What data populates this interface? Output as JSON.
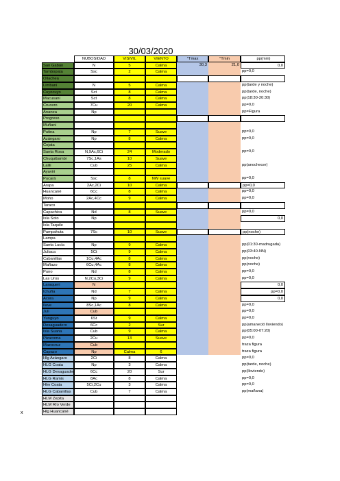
{
  "title": "30/03/2020",
  "side_mark": "x",
  "headers": [
    "",
    "NUBOSIDAD",
    "VISIVIL",
    "VIENTO",
    "°Tmax",
    "°Tmin",
    "pp(mm)"
  ],
  "rows": [
    {
      "st": "San Gabán",
      "n": "N",
      "v": "5",
      "w": "Calma",
      "tx": "30,3",
      "tn": "21,0",
      "pp": "0,0",
      "c": "sb-dark",
      "ppr": true
    },
    {
      "st": "Tambopata",
      "n": "Ssc",
      "v": "2",
      "w": "Calma",
      "tx": "",
      "tn": "",
      "pp": "pp=0,0",
      "c": "sb-dark"
    },
    {
      "st": "Ollachea",
      "n": "",
      "v": "",
      "w": "",
      "tx": "",
      "tn": "",
      "pp": "",
      "c": "sb-dark",
      "box": true
    },
    {
      "st": "Limbani",
      "n": "N",
      "v": "5",
      "w": "Calma",
      "tx": "",
      "tn": "",
      "pp": "pp(tarde y noche)",
      "c": "sb-dark"
    },
    {
      "st": "Cuyocuyo",
      "n": "Sct",
      "v": "8",
      "w": "Calma",
      "tx": "",
      "tn": "",
      "pp": "pp(tarde, noche)",
      "c": "sb-dark"
    },
    {
      "st": "Macusani",
      "n": "Sct",
      "v": "8",
      "w": "Calma",
      "tx": "",
      "tn": "",
      "pp": "pp(18:30-20:30)",
      "c": "sb-light"
    },
    {
      "st": "Crucero",
      "n": "7Cu",
      "v": "20",
      "w": "Calma",
      "tx": "",
      "tn": "",
      "pp": "pp=0,0",
      "c": "sb-light"
    },
    {
      "st": "Ananea",
      "n": "Np",
      "v": "",
      "w": "",
      "tx": "",
      "tn": "",
      "pp": "pp=Figura",
      "c": "sb-light"
    },
    {
      "st": "Progreso",
      "n": "",
      "v": "",
      "w": "",
      "tx": "",
      "tn": "",
      "pp": "",
      "c": "sb-light",
      "box": true
    },
    {
      "st": "Muñani",
      "n": "",
      "v": "",
      "w": "",
      "tx": "",
      "tn": "",
      "pp": "",
      "c": "sb-light"
    },
    {
      "st": "Putina",
      "n": "Np",
      "v": "7",
      "w": "Suave",
      "tx": "",
      "tn": "",
      "pp": "pp=0,0",
      "c": "sb-light"
    },
    {
      "st": "Azángaro",
      "n": "Np",
      "v": "8",
      "w": "Calma",
      "tx": "",
      "tn": "",
      "pp": "pp=0,0",
      "c": "sb-light"
    },
    {
      "st": "Cojata",
      "n": "",
      "v": "",
      "w": "",
      "tx": "",
      "tn": "",
      "pp": "",
      "c": "sb-light"
    },
    {
      "st": "Santa Rosa",
      "n": "N,9Ac,6Ci",
      "v": "24",
      "w": "Moderado",
      "tx": "",
      "tn": "",
      "pp": "pp=0,0",
      "c": "sb-light"
    },
    {
      "st": "Chuquibambi",
      "n": "7Sc,1As",
      "v": "10",
      "w": "Suave",
      "tx": "",
      "tn": "",
      "pp": "",
      "c": "sb-light"
    },
    {
      "st": "Lalili",
      "n": "Cub",
      "v": "25",
      "w": "Calma",
      "tx": "",
      "tn": "",
      "pp": "pp(anochecer)",
      "c": "sb-light"
    },
    {
      "st": "Ayaviri",
      "n": "",
      "v": "",
      "w": "",
      "tx": "",
      "tn": "",
      "pp": "",
      "c": "sb-light"
    },
    {
      "st": "Pucará",
      "n": "Ssc",
      "v": "8",
      "w": "NW suave",
      "tx": "",
      "tn": "",
      "pp": "pp=0,0",
      "c": "sb-light"
    },
    {
      "st": "Arapa",
      "n": "2Ac,2Ci",
      "v": "10",
      "w": "Calma",
      "tx": "",
      "tn": "",
      "pp": "pp=0,0",
      "c": "",
      "box": true
    },
    {
      "st": "Huancané",
      "n": "6Cc",
      "v": "8",
      "w": "Calma",
      "tx": "",
      "tn": "",
      "pp": "pp=0,0",
      "c": ""
    },
    {
      "st": "Moho",
      "n": "2Ac,4Cc",
      "v": "9",
      "w": "Calma",
      "tx": "",
      "tn": "",
      "pp": "pp=0,0",
      "c": ""
    },
    {
      "st": "Taraco",
      "n": "",
      "v": "",
      "w": "",
      "tx": "",
      "tn": "",
      "pp": "",
      "c": "",
      "box": true
    },
    {
      "st": "Capachica",
      "n": "Nd",
      "v": "8",
      "w": "Suave",
      "tx": "",
      "tn": "",
      "pp": "pp=0,0",
      "c": ""
    },
    {
      "st": "Isla Soto",
      "n": "Np",
      "v": "",
      "w": "",
      "tx": "",
      "tn": "",
      "pp": "0,0",
      "c": "",
      "ppr": true
    },
    {
      "st": "Isla Taquile",
      "n": "",
      "v": "",
      "w": "",
      "tx": "",
      "tn": "",
      "pp": "",
      "c": ""
    },
    {
      "st": "Pampahuta",
      "n": "7Sc",
      "v": "10",
      "w": "Suave",
      "tx": "",
      "tn": "",
      "pp": "pp(noche)",
      "c": "",
      "box": true
    },
    {
      "st": "Lampa",
      "n": "",
      "v": "",
      "w": "",
      "tx": "",
      "tn": "",
      "pp": "",
      "c": ""
    },
    {
      "st": "Santa Lucía",
      "n": "Np",
      "v": "9",
      "w": "Calma",
      "tx": "",
      "tn": "",
      "pp": "pp(01:30-madrugada)",
      "c": ""
    },
    {
      "st": "Juliaca",
      "n": "5Ct",
      "v": "9",
      "w": "Calma",
      "tx": "",
      "tn": "",
      "pp": "pp(03:40-NN)",
      "c": ""
    },
    {
      "st": "Cabanillas",
      "n": "1Cu,4Ac",
      "v": "8",
      "w": "Calma",
      "tx": "",
      "tn": "",
      "pp": "pp(noche)",
      "c": ""
    },
    {
      "st": "Mañazo",
      "n": "6Cu,4Ac",
      "v": "8",
      "w": "Calma",
      "tx": "",
      "tn": "",
      "pp": "pp(noche)",
      "c": ""
    },
    {
      "st": "Puno",
      "n": "Nd",
      "v": "8",
      "w": "Calma",
      "tx": "",
      "tn": "",
      "pp": "pp=0,0",
      "c": ""
    },
    {
      "st": "Las Uros",
      "n": "N,2Cu,3Ci",
      "v": "9",
      "w": "Calma",
      "tx": "",
      "tn": "",
      "pp": "pp=0,0",
      "c": ""
    },
    {
      "st": "Laraqueri",
      "n": "N",
      "v": "",
      "w": "",
      "tx": "",
      "tn": "",
      "pp": "0,0",
      "c": "sb-blue",
      "ncol": "pch",
      "ppr": true
    },
    {
      "st": "Ichuña",
      "n": "Nd",
      "v": "7",
      "w": "Calma",
      "tx": "",
      "tn": "",
      "pp": "pp=0,0",
      "c": "sb-blue",
      "ppr": true
    },
    {
      "st": "Acora",
      "n": "Np",
      "v": "9",
      "w": "Calma",
      "tx": "",
      "tn": "",
      "pp": "0,0",
      "c": "sb-blue",
      "ppr": true
    },
    {
      "st": "Ilave",
      "n": "8Sc,1Ac",
      "v": "8",
      "w": "Calma",
      "tx": "",
      "tn": "",
      "pp": "pp=0,0",
      "c": "sb-blue"
    },
    {
      "st": "Juli",
      "n": "Cub",
      "v": "",
      "w": "",
      "tx": "",
      "tn": "",
      "pp": "pp=0,0",
      "c": "sb-blue",
      "ncol": "pch"
    },
    {
      "st": "Yunguyo",
      "n": "6St",
      "v": "9",
      "w": "Calma",
      "tx": "",
      "tn": "",
      "pp": "pp=0,0",
      "c": "sb-blue"
    },
    {
      "st": "Desaguadero",
      "n": "6Cc",
      "v": "2",
      "w": "Sur",
      "tx": "",
      "tn": "",
      "pp": "pp(amaneció lloviendo)",
      "c": "sb-blue"
    },
    {
      "st": "Isla Suana",
      "n": "Cub",
      "v": "9",
      "w": "Calma",
      "tx": "",
      "tn": "",
      "pp": "pp(05:00-07:20)",
      "c": "sb-blue"
    },
    {
      "st": "Pizacoma",
      "n": "2Cu",
      "v": "13",
      "w": "Suave",
      "tx": "",
      "tn": "",
      "pp": "pp=0,0",
      "c": "sb-blue"
    },
    {
      "st": "Mazocruz",
      "n": "Cub",
      "v": "",
      "w": "",
      "tx": "",
      "tn": "",
      "pp": "traza figura",
      "c": "sb-blue",
      "ncol": "pch"
    },
    {
      "st": "Capazo",
      "n": "Np",
      "v": "Calma",
      "w": "6",
      "tx": "",
      "tn": "",
      "pp": "traza figura",
      "c": "sb-blue",
      "ncol": "pch"
    },
    {
      "st": "Hlg Azángaro",
      "n": "2Ci",
      "v": "8",
      "w": "Calma",
      "tx": "",
      "tn": "",
      "pp": "pp=0,0",
      "c": "sb-lblue",
      "plain": true
    },
    {
      "st": "HLG Coata",
      "n": "Np",
      "v": "3",
      "w": "Calma",
      "tx": "",
      "tn": "",
      "pp": "pp(tarde, noche)",
      "c": "sb-lblue",
      "plain": true
    },
    {
      "st": "HLG Desaguadero",
      "n": "6Cc",
      "v": "20",
      "w": "Sur",
      "tx": "",
      "tn": "",
      "pp": "pp(lloviendo)",
      "c": "sb-lblue",
      "plain": true
    },
    {
      "st": "HLG Ramis",
      "n": "8Ac",
      "v": "8",
      "w": "Calma",
      "tx": "",
      "tn": "",
      "pp": "pp=0,0",
      "c": "sb-lblue",
      "plain": true
    },
    {
      "st": "Hlm Coata",
      "n": "5Ci,2Cu",
      "v": "3",
      "w": "Calma",
      "tx": "",
      "tn": "",
      "pp": "pp=0,0",
      "c": "sb-lblue",
      "plain": true
    },
    {
      "st": "HLG Cabanillas",
      "n": "Cub",
      "v": "7",
      "w": "Calma",
      "tx": "",
      "tn": "",
      "pp": "pp(mañana)",
      "c": "sb-lblue",
      "plain": true
    },
    {
      "st": "HLM Zepita",
      "n": "",
      "v": "",
      "w": "",
      "tx": "",
      "tn": "",
      "pp": "",
      "c": "sb-grey",
      "plain": true
    },
    {
      "st": "HLM Río Verde",
      "n": "",
      "v": "",
      "w": "",
      "tx": "",
      "tn": "",
      "pp": "",
      "c": "sb-grey",
      "plain": true
    },
    {
      "st": "Hlg Huancané",
      "n": "",
      "v": "",
      "w": "",
      "tx": "",
      "tn": "",
      "pp": "",
      "c": "sb-grey",
      "plain": true
    }
  ]
}
